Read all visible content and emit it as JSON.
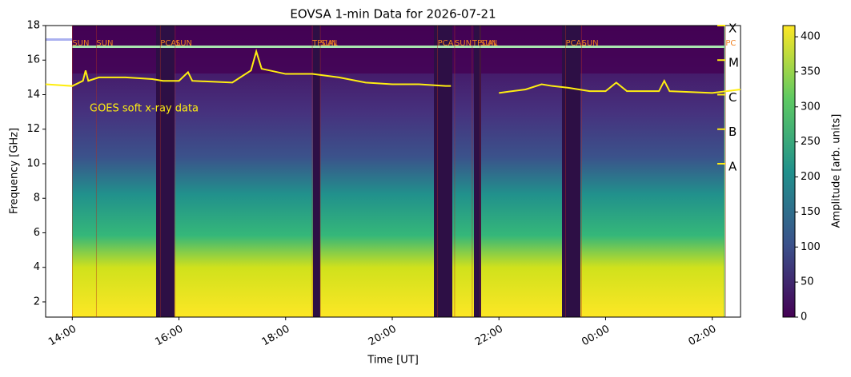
{
  "chart_data": {
    "type": "line",
    "title": "EOVSA 1-min Data for 2026-07-21",
    "xlabel": "Time [UT]",
    "ylabel": "Frequency [GHz]",
    "colorbar_label": "Amplitude [arb. units]",
    "annotation": "GOES soft x-ray data",
    "xlim": [
      13.5,
      26.53
    ],
    "ylim": [
      1.12,
      18
    ],
    "xticks": [
      {
        "value": 14,
        "label": "14:00"
      },
      {
        "value": 16,
        "label": "16:00"
      },
      {
        "value": 18,
        "label": "18:00"
      },
      {
        "value": 20,
        "label": "20:00"
      },
      {
        "value": 22,
        "label": "22:00"
      },
      {
        "value": 24,
        "label": "00:00"
      },
      {
        "value": 26,
        "label": "02:00"
      }
    ],
    "yticks": [
      2,
      4,
      6,
      8,
      10,
      12,
      14,
      16,
      18
    ],
    "clim": [
      0,
      416
    ],
    "cticks": [
      0,
      50,
      100,
      150,
      200,
      250,
      300,
      350,
      400
    ],
    "goes_classes": [
      {
        "value": 18,
        "label": "X"
      },
      {
        "value": 16,
        "label": "M"
      },
      {
        "value": 14,
        "label": "C"
      },
      {
        "value": 12,
        "label": "B"
      },
      {
        "value": 10,
        "label": "A"
      }
    ],
    "scan_labels": [
      {
        "text": "SUN",
        "x": 14.0
      },
      {
        "text": "SUN",
        "x": 14.45
      },
      {
        "text": "PCAL",
        "x": 15.65
      },
      {
        "text": "SUN",
        "x": 15.93
      },
      {
        "text": "TPCAL",
        "x": 18.5
      },
      {
        "text": "SUN",
        "x": 18.65
      },
      {
        "text": "PCAL",
        "x": 20.85
      },
      {
        "text": "SUN",
        "x": 21.17
      },
      {
        "text": "TPCAL",
        "x": 21.5
      },
      {
        "text": "SUN",
        "x": 21.65
      },
      {
        "text": "PCAL",
        "x": 23.25
      },
      {
        "text": "SUN",
        "x": 23.55
      },
      {
        "text": "PC",
        "x": 26.25
      }
    ],
    "series": [
      {
        "name": "GOES",
        "color": "#ffee11",
        "x": [
          13.5,
          14.0,
          14.2,
          14.25,
          14.3,
          14.5,
          15.0,
          15.5,
          15.7,
          16.0,
          16.17,
          16.25,
          17.0,
          17.35,
          17.45,
          17.55,
          18.0,
          18.5,
          19.0,
          19.5,
          20.0,
          20.5,
          21.0,
          21.1,
          21.5,
          22.0,
          22.5,
          22.8,
          23.0,
          23.3,
          23.7,
          24.0,
          24.2,
          24.4,
          25.0,
          25.1,
          25.2,
          26.0,
          26.53
        ],
        "values": [
          14.6,
          14.5,
          14.8,
          15.4,
          14.8,
          15.0,
          15.0,
          14.9,
          14.8,
          14.8,
          15.3,
          14.8,
          14.7,
          15.4,
          16.5,
          15.5,
          15.2,
          15.2,
          15.0,
          14.7,
          14.6,
          14.6,
          14.5,
          14.5,
          null,
          14.1,
          14.3,
          14.6,
          14.5,
          14.4,
          14.2,
          14.2,
          14.7,
          14.2,
          14.2,
          14.8,
          14.2,
          14.1,
          14.3
        ]
      }
    ]
  }
}
